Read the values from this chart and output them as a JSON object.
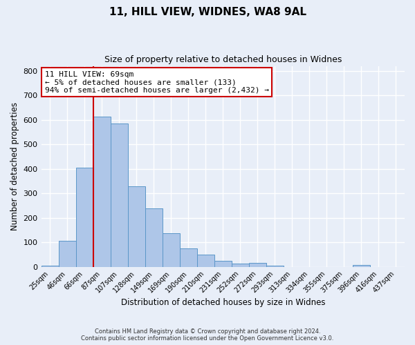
{
  "title": "11, HILL VIEW, WIDNES, WA8 9AL",
  "subtitle": "Size of property relative to detached houses in Widnes",
  "xlabel": "Distribution of detached houses by size in Widnes",
  "ylabel": "Number of detached properties",
  "bin_labels": [
    "25sqm",
    "46sqm",
    "66sqm",
    "87sqm",
    "107sqm",
    "128sqm",
    "149sqm",
    "169sqm",
    "190sqm",
    "210sqm",
    "231sqm",
    "252sqm",
    "272sqm",
    "293sqm",
    "313sqm",
    "334sqm",
    "355sqm",
    "375sqm",
    "396sqm",
    "416sqm",
    "437sqm"
  ],
  "bar_values": [
    5,
    107,
    404,
    612,
    585,
    328,
    237,
    136,
    76,
    49,
    25,
    14,
    15,
    5,
    0,
    0,
    0,
    0,
    8,
    0,
    0
  ],
  "bar_color": "#aec6e8",
  "bar_edge_color": "#5a96c8",
  "marker_label": "11 HILL VIEW: 69sqm",
  "annotation_line1": "← 5% of detached houses are smaller (133)",
  "annotation_line2": "94% of semi-detached houses are larger (2,432) →",
  "annotation_box_color": "#ffffff",
  "annotation_box_edge_color": "#cc0000",
  "vline_color": "#cc0000",
  "vline_x": 2.5,
  "ylim": [
    0,
    820
  ],
  "yticks": [
    0,
    100,
    200,
    300,
    400,
    500,
    600,
    700,
    800
  ],
  "footer_line1": "Contains HM Land Registry data © Crown copyright and database right 2024.",
  "footer_line2": "Contains public sector information licensed under the Open Government Licence v3.0.",
  "bg_color": "#e8eef8"
}
